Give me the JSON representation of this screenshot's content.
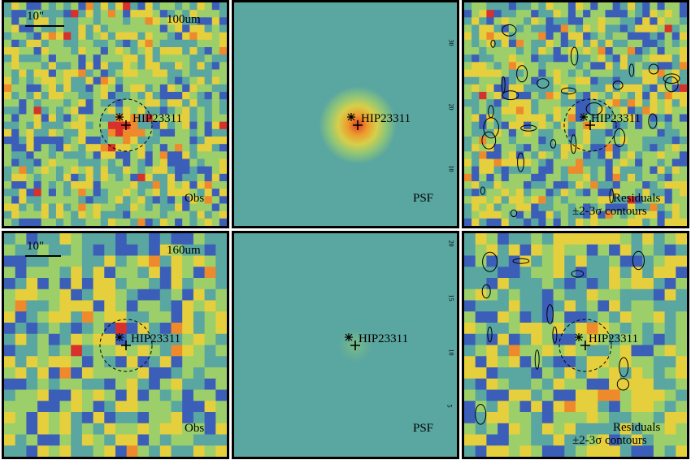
{
  "target_name": "HIP23311",
  "scale_bar_label": "10\"",
  "row_top": {
    "band_label": "100um",
    "obs_label": "Obs",
    "psf_label": "PSF",
    "residual_label_1": "Residuals",
    "residual_label_2": "±2-3σ contours",
    "psf_axis_ticks": [
      "30",
      "20",
      "10"
    ]
  },
  "row_bottom": {
    "band_label": "160um",
    "obs_label": "Obs",
    "psf_label": "PSF",
    "residual_label_1": "Residuals",
    "residual_label_2": "±2-3σ contours",
    "psf_axis_ticks": [
      "20",
      "15",
      "10",
      "5"
    ]
  },
  "colors": {
    "psf_background": "#5aa6a0",
    "colormap": [
      "#3a0f7a",
      "#3b5fb8",
      "#5aa6a0",
      "#9ccf6a",
      "#e6cf3c",
      "#ee8a2c",
      "#d8302a"
    ]
  }
}
